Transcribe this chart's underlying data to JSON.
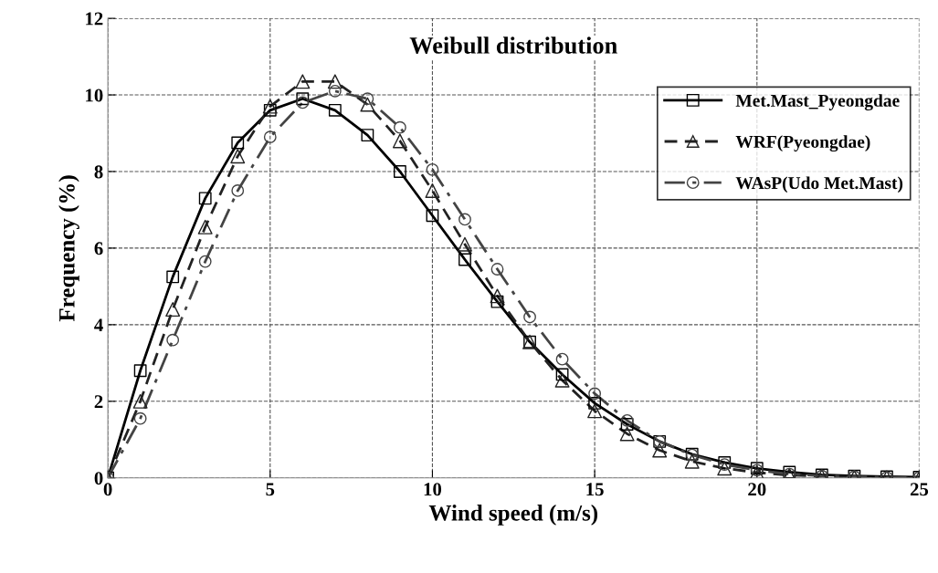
{
  "chart_data": {
    "type": "line",
    "title": "Weibull distribution",
    "xlabel": "Wind speed (m/s)",
    "ylabel": "Frequency (%)",
    "x": [
      0,
      1,
      2,
      3,
      4,
      5,
      6,
      7,
      8,
      9,
      10,
      11,
      12,
      13,
      14,
      15,
      16,
      17,
      18,
      19,
      20,
      21,
      22,
      23,
      24,
      25
    ],
    "series": [
      {
        "name": "Met.Mast_Pyeongdae",
        "color": "#000000",
        "marker": "square",
        "line_style": "solid",
        "values": [
          0,
          2.8,
          5.25,
          7.3,
          8.75,
          9.6,
          9.9,
          9.6,
          8.95,
          8.0,
          6.85,
          5.7,
          4.6,
          3.55,
          2.7,
          1.95,
          1.4,
          0.95,
          0.62,
          0.4,
          0.25,
          0.15,
          0.08,
          0.05,
          0.03,
          0.02
        ]
      },
      {
        "name": "WRF(Pyeongdae)",
        "color": "#222222",
        "marker": "triangle",
        "line_style": "dashed",
        "values": [
          0,
          2.0,
          4.4,
          6.55,
          8.4,
          9.7,
          10.35,
          10.35,
          9.75,
          8.8,
          7.5,
          6.1,
          4.75,
          3.55,
          2.55,
          1.75,
          1.15,
          0.72,
          0.43,
          0.25,
          0.14,
          0.07,
          0.04,
          0.02,
          0.01,
          0
        ]
      },
      {
        "name": "WAsP(Udo Met.Mast)",
        "color": "#444444",
        "marker": "circle",
        "line_style": "dashdot",
        "values": [
          0,
          1.55,
          3.6,
          5.65,
          7.5,
          8.9,
          9.8,
          10.1,
          9.9,
          9.15,
          8.05,
          6.75,
          5.45,
          4.2,
          3.1,
          2.2,
          1.5,
          0.95,
          0.6,
          0.35,
          0.2,
          0.1,
          0.05,
          0.03,
          0.01,
          0.01
        ]
      }
    ],
    "xlim": [
      0,
      25
    ],
    "xticks": [
      0,
      5,
      10,
      15,
      20,
      25
    ],
    "ylim": [
      0,
      12
    ],
    "yticks": [
      0,
      2,
      4,
      6,
      8,
      10,
      12
    ],
    "grid": true,
    "legend": "top right"
  }
}
